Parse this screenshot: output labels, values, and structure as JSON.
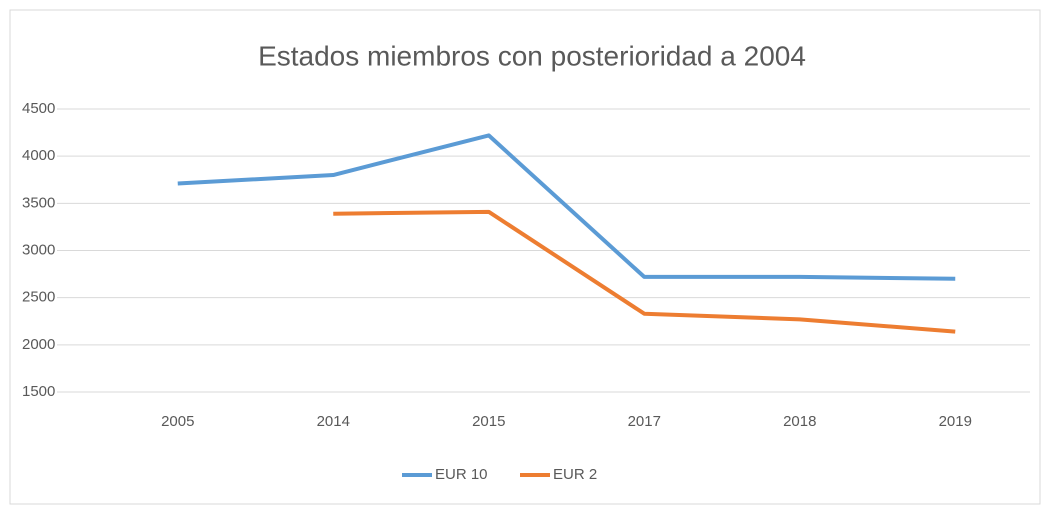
{
  "chart_data": {
    "type": "line",
    "title": "Estados miembros con posterioridad a 2004",
    "categories": [
      "2005",
      "2014",
      "2015",
      "2017",
      "2018",
      "2019"
    ],
    "series": [
      {
        "name": "EUR 10",
        "color": "#5b9bd5",
        "values": [
          3710,
          3800,
          4220,
          2720,
          2720,
          2700
        ]
      },
      {
        "name": "EUR 2",
        "color": "#ed7d31",
        "values": [
          null,
          3390,
          3410,
          2330,
          2270,
          2140
        ]
      }
    ],
    "ylim": [
      1500,
      4500
    ],
    "yticks": [
      1500,
      2000,
      2500,
      3000,
      3500,
      4000,
      4500
    ],
    "grid": true,
    "legend": "bottom"
  }
}
